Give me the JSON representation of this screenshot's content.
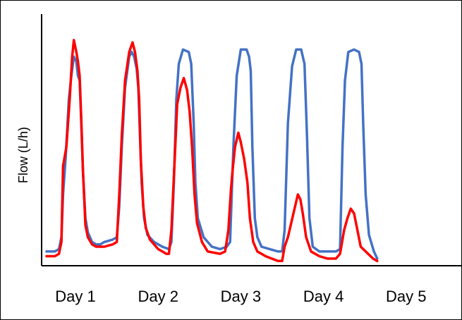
{
  "chart_data": {
    "type": "line",
    "title": "",
    "xlabel": "",
    "ylabel": "Flow (L/h)",
    "categories": [
      "Day 1",
      "Day 2",
      "Day 3",
      "Day 4",
      "Day 5"
    ],
    "xlim": [
      0,
      5
    ],
    "ylim": [
      0,
      100
    ],
    "grid": false,
    "legend": "none",
    "series": [
      {
        "color": "#4472C4",
        "points": [
          [
            0.0,
            6
          ],
          [
            0.1,
            6
          ],
          [
            0.15,
            7
          ],
          [
            0.18,
            12
          ],
          [
            0.2,
            30
          ],
          [
            0.23,
            45
          ],
          [
            0.27,
            70
          ],
          [
            0.3,
            80
          ],
          [
            0.33,
            88
          ],
          [
            0.36,
            86
          ],
          [
            0.38,
            80
          ],
          [
            0.4,
            78
          ],
          [
            0.42,
            60
          ],
          [
            0.44,
            40
          ],
          [
            0.47,
            20
          ],
          [
            0.5,
            14
          ],
          [
            0.55,
            10
          ],
          [
            0.6,
            9
          ],
          [
            0.65,
            9
          ],
          [
            0.7,
            10
          ],
          [
            0.8,
            11
          ],
          [
            0.85,
            12
          ],
          [
            0.88,
            25
          ],
          [
            0.91,
            50
          ],
          [
            0.95,
            75
          ],
          [
            1.0,
            88
          ],
          [
            1.03,
            90
          ],
          [
            1.06,
            88
          ],
          [
            1.09,
            83
          ],
          [
            1.11,
            75
          ],
          [
            1.13,
            55
          ],
          [
            1.15,
            35
          ],
          [
            1.18,
            20
          ],
          [
            1.22,
            13
          ],
          [
            1.3,
            10
          ],
          [
            1.4,
            8
          ],
          [
            1.48,
            7
          ],
          [
            1.51,
            10
          ],
          [
            1.54,
            35
          ],
          [
            1.57,
            70
          ],
          [
            1.6,
            85
          ],
          [
            1.65,
            91
          ],
          [
            1.72,
            90
          ],
          [
            1.75,
            85
          ],
          [
            1.78,
            60
          ],
          [
            1.8,
            35
          ],
          [
            1.83,
            20
          ],
          [
            1.9,
            12
          ],
          [
            2.0,
            8
          ],
          [
            2.1,
            7
          ],
          [
            2.18,
            8
          ],
          [
            2.22,
            10
          ],
          [
            2.26,
            50
          ],
          [
            2.3,
            80
          ],
          [
            2.35,
            91
          ],
          [
            2.42,
            91
          ],
          [
            2.45,
            88
          ],
          [
            2.47,
            82
          ],
          [
            2.49,
            50
          ],
          [
            2.52,
            20
          ],
          [
            2.55,
            12
          ],
          [
            2.6,
            8
          ],
          [
            2.7,
            7
          ],
          [
            2.8,
            6
          ],
          [
            2.85,
            6
          ],
          [
            2.88,
            15
          ],
          [
            2.92,
            60
          ],
          [
            2.97,
            84
          ],
          [
            3.02,
            91
          ],
          [
            3.08,
            91
          ],
          [
            3.12,
            85
          ],
          [
            3.15,
            55
          ],
          [
            3.18,
            20
          ],
          [
            3.22,
            8
          ],
          [
            3.3,
            6
          ],
          [
            3.4,
            6
          ],
          [
            3.5,
            6
          ],
          [
            3.55,
            7
          ],
          [
            3.58,
            50
          ],
          [
            3.61,
            78
          ],
          [
            3.65,
            90
          ],
          [
            3.72,
            91
          ],
          [
            3.78,
            90
          ],
          [
            3.81,
            85
          ],
          [
            3.83,
            60
          ],
          [
            3.86,
            30
          ],
          [
            3.9,
            13
          ],
          [
            3.96,
            6
          ],
          [
            4.0,
            3
          ]
        ]
      },
      {
        "color": "#FF0000",
        "points": [
          [
            0.0,
            4
          ],
          [
            0.1,
            4
          ],
          [
            0.15,
            5
          ],
          [
            0.18,
            10
          ],
          [
            0.2,
            42
          ],
          [
            0.24,
            50
          ],
          [
            0.28,
            70
          ],
          [
            0.31,
            88
          ],
          [
            0.33,
            95
          ],
          [
            0.36,
            90
          ],
          [
            0.38,
            86
          ],
          [
            0.4,
            80
          ],
          [
            0.42,
            62
          ],
          [
            0.44,
            40
          ],
          [
            0.47,
            17
          ],
          [
            0.5,
            12
          ],
          [
            0.55,
            9
          ],
          [
            0.6,
            8
          ],
          [
            0.65,
            8
          ],
          [
            0.7,
            8
          ],
          [
            0.8,
            9
          ],
          [
            0.85,
            10
          ],
          [
            0.88,
            30
          ],
          [
            0.91,
            55
          ],
          [
            0.95,
            78
          ],
          [
            1.0,
            90
          ],
          [
            1.04,
            94
          ],
          [
            1.07,
            90
          ],
          [
            1.1,
            82
          ],
          [
            1.12,
            70
          ],
          [
            1.14,
            45
          ],
          [
            1.17,
            25
          ],
          [
            1.2,
            16
          ],
          [
            1.25,
            11
          ],
          [
            1.35,
            7
          ],
          [
            1.45,
            5
          ],
          [
            1.48,
            5
          ],
          [
            1.51,
            15
          ],
          [
            1.55,
            45
          ],
          [
            1.58,
            68
          ],
          [
            1.62,
            75
          ],
          [
            1.66,
            79
          ],
          [
            1.7,
            74
          ],
          [
            1.73,
            65
          ],
          [
            1.76,
            50
          ],
          [
            1.79,
            30
          ],
          [
            1.82,
            18
          ],
          [
            1.88,
            10
          ],
          [
            1.95,
            6
          ],
          [
            2.1,
            5
          ],
          [
            2.16,
            6
          ],
          [
            2.2,
            15
          ],
          [
            2.23,
            32
          ],
          [
            2.25,
            40
          ],
          [
            2.28,
            50
          ],
          [
            2.32,
            56
          ],
          [
            2.35,
            52
          ],
          [
            2.39,
            45
          ],
          [
            2.43,
            35
          ],
          [
            2.46,
            20
          ],
          [
            2.5,
            10
          ],
          [
            2.55,
            6
          ],
          [
            2.65,
            4
          ],
          [
            2.8,
            2
          ],
          [
            2.85,
            2
          ],
          [
            2.88,
            8
          ],
          [
            2.92,
            12
          ],
          [
            2.96,
            18
          ],
          [
            3.0,
            24
          ],
          [
            3.04,
            30
          ],
          [
            3.07,
            28
          ],
          [
            3.1,
            22
          ],
          [
            3.14,
            12
          ],
          [
            3.2,
            6
          ],
          [
            3.3,
            4
          ],
          [
            3.4,
            3
          ],
          [
            3.5,
            3
          ],
          [
            3.55,
            5
          ],
          [
            3.6,
            15
          ],
          [
            3.64,
            20
          ],
          [
            3.68,
            24
          ],
          [
            3.72,
            22
          ],
          [
            3.76,
            15
          ],
          [
            3.8,
            8
          ],
          [
            3.86,
            6
          ],
          [
            3.95,
            3
          ],
          [
            4.0,
            2
          ]
        ]
      }
    ]
  }
}
